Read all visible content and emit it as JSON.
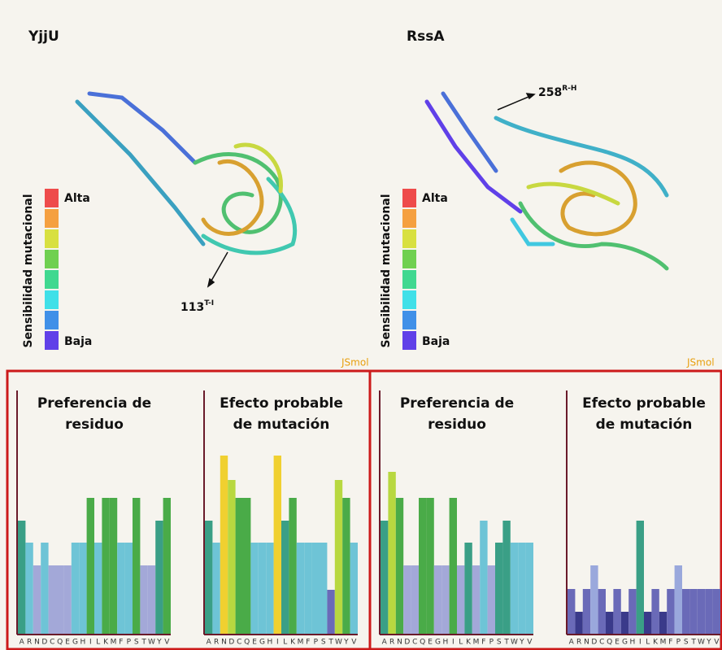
{
  "panels": [
    {
      "title": "YjjU",
      "legend": {
        "label": "Sensibilidad mutacional",
        "high": "Alta",
        "low": "Baja"
      },
      "annotation": {
        "text": "113",
        "superscript": "T-I"
      },
      "viewer": "JSmol"
    },
    {
      "title": "RssA",
      "legend": {
        "label": "Sensibilidad mutacional",
        "high": "Alta",
        "low": "Baja"
      },
      "annotation": {
        "text": "258",
        "superscript": "R-H"
      },
      "viewer": "JSmol"
    }
  ],
  "scale_colors": [
    "#ee4b4b",
    "#f5a040",
    "#d8e040",
    "#70d050",
    "#40d890",
    "#40e0e8",
    "#4090e8",
    "#6040e8"
  ],
  "chart_data": [
    {
      "type": "bar",
      "title": [
        "Preferencia de",
        "residuo"
      ],
      "categories": [
        "A",
        "R",
        "N",
        "D",
        "C",
        "Q",
        "E",
        "G",
        "H",
        "I",
        "L",
        "K",
        "M",
        "F",
        "P",
        "S",
        "T",
        "W",
        "Y",
        "V"
      ],
      "values": [
        140,
        113,
        85,
        113,
        85,
        85,
        85,
        113,
        113,
        168,
        113,
        168,
        168,
        113,
        113,
        168,
        85,
        85,
        140,
        168
      ],
      "colors": [
        "#3a9f86",
        "#6ec4d6",
        "#a3a8d8",
        "#6ec4d6",
        "#a3a8d8",
        "#a3a8d8",
        "#a3a8d8",
        "#6ec4d6",
        "#6ec4d6",
        "#4aab48",
        "#6ec4d6",
        "#4aab48",
        "#4aab48",
        "#6ec4d6",
        "#6ec4d6",
        "#4aab48",
        "#a3a8d8",
        "#a3a8d8",
        "#3a9f86",
        "#4aab48"
      ],
      "ylim": [
        0,
        300
      ]
    },
    {
      "type": "bar",
      "title": [
        "Efecto probable",
        "de mutación"
      ],
      "categories": [
        "A",
        "R",
        "N",
        "D",
        "C",
        "Q",
        "E",
        "G",
        "H",
        "I",
        "L",
        "K",
        "M",
        "F",
        "P",
        "S",
        "T",
        "W",
        "Y",
        "V"
      ],
      "values": [
        140,
        113,
        220,
        190,
        168,
        168,
        113,
        113,
        113,
        220,
        140,
        168,
        113,
        113,
        113,
        113,
        55,
        190,
        168,
        113
      ],
      "colors": [
        "#3a9f86",
        "#6ec4d6",
        "#f0d030",
        "#b8d840",
        "#4aab48",
        "#4aab48",
        "#6ec4d6",
        "#6ec4d6",
        "#6ec4d6",
        "#f0d030",
        "#3a9f86",
        "#4aab48",
        "#6ec4d6",
        "#6ec4d6",
        "#6ec4d6",
        "#6ec4d6",
        "#6a6ab8",
        "#b8d840",
        "#4aab48",
        "#6ec4d6"
      ],
      "ylim": [
        0,
        300
      ]
    },
    {
      "type": "bar",
      "title": [
        "Preferencia de",
        "residuo"
      ],
      "categories": [
        "A",
        "R",
        "N",
        "D",
        "C",
        "Q",
        "E",
        "G",
        "H",
        "I",
        "L",
        "K",
        "M",
        "F",
        "P",
        "S",
        "T",
        "W",
        "Y",
        "V"
      ],
      "values": [
        140,
        200,
        168,
        85,
        85,
        168,
        168,
        85,
        85,
        168,
        85,
        113,
        85,
        140,
        85,
        113,
        140,
        113,
        113,
        113
      ],
      "colors": [
        "#3a9f86",
        "#b8d840",
        "#4aab48",
        "#a3a8d8",
        "#a3a8d8",
        "#4aab48",
        "#4aab48",
        "#a3a8d8",
        "#a3a8d8",
        "#4aab48",
        "#a3a8d8",
        "#3a9f86",
        "#a3a8d8",
        "#6ec4d6",
        "#a3a8d8",
        "#3a9f86",
        "#3a9f86",
        "#6ec4d6",
        "#6ec4d6",
        "#6ec4d6"
      ],
      "ylim": [
        0,
        300
      ]
    },
    {
      "type": "bar",
      "title": [
        "Efecto probable",
        "de mutación"
      ],
      "categories": [
        "A",
        "R",
        "N",
        "D",
        "C",
        "Q",
        "E",
        "G",
        "H",
        "I",
        "L",
        "K",
        "M",
        "F",
        "P",
        "S",
        "T",
        "W",
        "Y",
        "V"
      ],
      "values": [
        56,
        28,
        56,
        85,
        56,
        28,
        56,
        28,
        56,
        140,
        28,
        56,
        28,
        56,
        85,
        56,
        56,
        56,
        56,
        56
      ],
      "colors": [
        "#6a6ab8",
        "#3a3a8a",
        "#6a6ab8",
        "#9aa8dc",
        "#6a6ab8",
        "#3a3a8a",
        "#6a6ab8",
        "#3a3a8a",
        "#6a6ab8",
        "#3a9f86",
        "#3a3a8a",
        "#6a6ab8",
        "#3a3a8a",
        "#6a6ab8",
        "#9aa8dc",
        "#6a6ab8",
        "#6a6ab8",
        "#6a6ab8",
        "#6a6ab8",
        "#6a6ab8"
      ],
      "ylim": [
        0,
        300
      ]
    }
  ]
}
